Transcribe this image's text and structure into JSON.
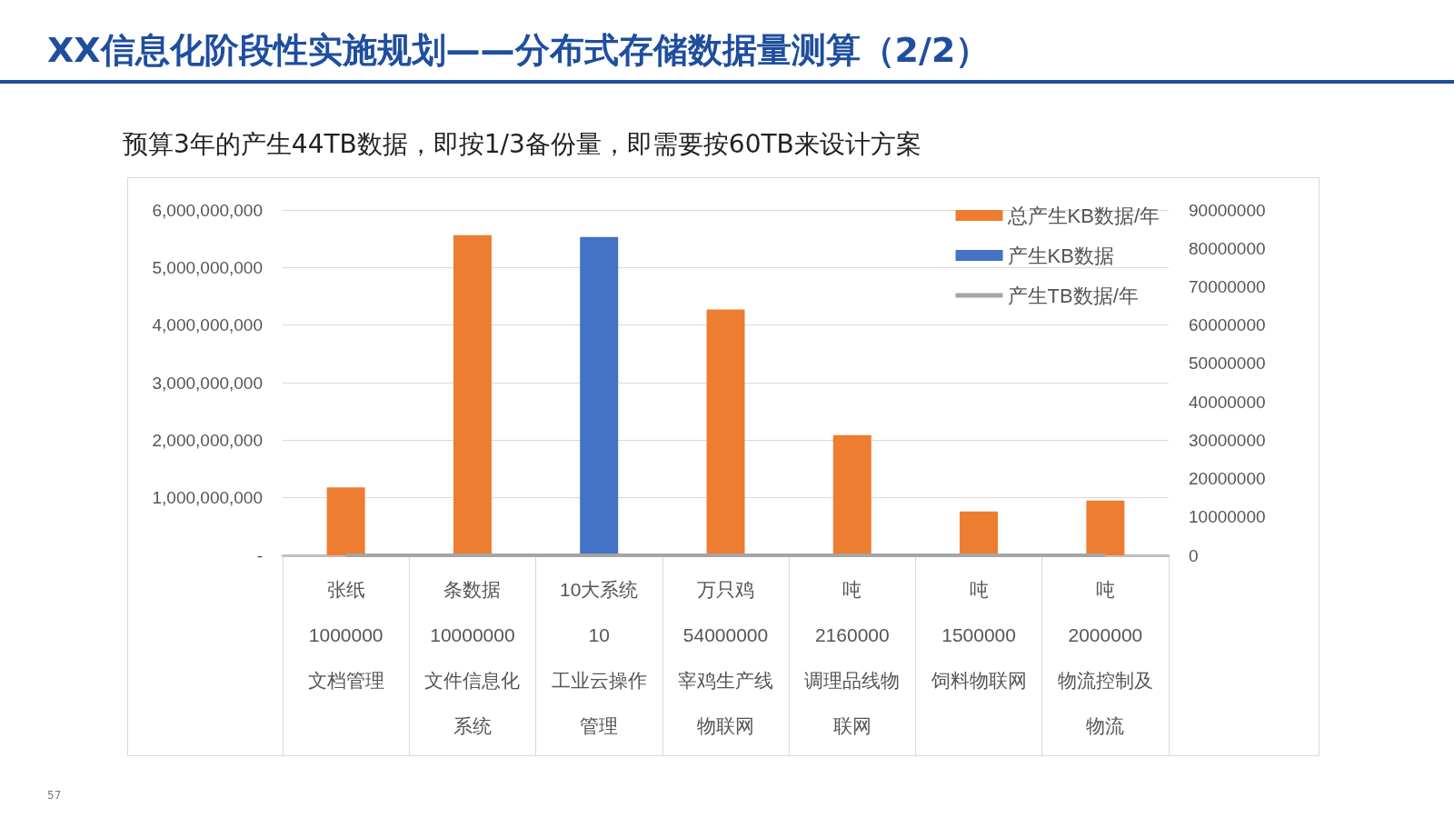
{
  "chart_data": {
    "type": "bar",
    "title": "XX信息化阶段性实施规划——分布式存储数据量测算（2/2）",
    "subtitle": "预算3年的产生44TB数据，即按1/3备份量，即需要按60TB来设计方案",
    "categories": [
      "张纸\n1000000\n文档管理",
      "条数据\n10000000\n文件信息化系统",
      "10大系统\n10\n工业云操作管理",
      "万只鸡\n54000000\n宰鸡生产线物联网",
      "吨\n2160000\n调理品线物联网",
      "吨\n1500000\n饲料物联网",
      "吨\n2000000\n物流控制及物流"
    ],
    "series": [
      {
        "name": "总产生KB数据/年",
        "color": "#ed7d31",
        "values": [
          1180000000,
          5560000000,
          null,
          4270000000,
          2090000000,
          760000000,
          950000000
        ]
      },
      {
        "name": "产生KB数据",
        "color": "#4472c4",
        "values": [
          null,
          null,
          5530000000,
          null,
          null,
          null,
          null
        ]
      },
      {
        "name": "产生TB数据/年",
        "type": "line",
        "axis": "y2",
        "color": "#a5a5a5",
        "values": [
          0,
          0,
          0,
          0,
          0,
          0,
          0
        ]
      }
    ],
    "ylim": [
      0,
      6000000000
    ],
    "yticks": [
      {
        "value": 0,
        "label": "-"
      },
      {
        "value": 1000000000,
        "label": "1,000,000,000"
      },
      {
        "value": 2000000000,
        "label": "2,000,000,000"
      },
      {
        "value": 3000000000,
        "label": "3,000,000,000"
      },
      {
        "value": 4000000000,
        "label": "4,000,000,000"
      },
      {
        "value": 5000000000,
        "label": "5,000,000,000"
      },
      {
        "value": 6000000000,
        "label": "6,000,000,000"
      }
    ],
    "y2lim": [
      0,
      90000000
    ],
    "y2ticks": [
      0,
      10000000,
      20000000,
      30000000,
      40000000,
      50000000,
      60000000,
      70000000,
      80000000,
      90000000
    ],
    "grid": "y",
    "legend": "top right",
    "marker": "none",
    "annotations": [
      "57"
    ]
  }
}
